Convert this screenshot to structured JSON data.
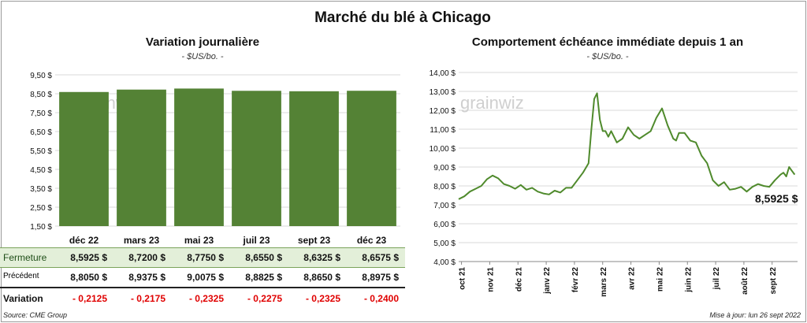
{
  "title": "Marché du blé à Chicago",
  "left_panel": {
    "title": "Variation  journalière",
    "unit": "- $US/bo. -",
    "watermark": "grainwiz"
  },
  "right_panel": {
    "title": "Comportement  échéance immédiate depuis 1 an",
    "unit": "- $US/bo. -",
    "watermark": "grainwiz",
    "last_value_label": "8,5925 $"
  },
  "table": {
    "rows": [
      {
        "label": "Fermeture",
        "values": [
          "8,5925  $",
          "8,7200  $",
          "8,7750  $",
          "8,6550  $",
          "8,6325  $",
          "8,6575  $"
        ]
      },
      {
        "label": "Précédent",
        "values": [
          "8,8050  $",
          "8,9375  $",
          "9,0075  $",
          "8,8825  $",
          "8,8650  $",
          "8,8975  $"
        ]
      },
      {
        "label": "Variation",
        "values": [
          "- 0,2125",
          "- 0,2175",
          "- 0,2325",
          "- 0,2275",
          "- 0,2325",
          "- 0,2400"
        ]
      }
    ]
  },
  "footer": {
    "source": "Source: CME Group",
    "updated": "Mise à jour: lun 26 sept 2022"
  },
  "colors": {
    "bar": "#548235",
    "line": "#4f8a2c",
    "grid": "#d9d9d9",
    "negative": "#e00000"
  },
  "chart_data": [
    {
      "type": "bar",
      "title": "Variation  journalière",
      "ylabel": "- $US/bo. -",
      "categories": [
        "déc 22",
        "mars 23",
        "mai 23",
        "juil 23",
        "sept 23",
        "déc 23"
      ],
      "values": [
        8.5925,
        8.72,
        8.775,
        8.655,
        8.6325,
        8.6575
      ],
      "ylim": [
        1.5,
        9.5
      ],
      "yticks": [
        1.5,
        2.5,
        3.5,
        4.5,
        5.5,
        6.5,
        7.5,
        8.5,
        9.5
      ],
      "ytick_labels": [
        "1,50 $",
        "2,50 $",
        "3,50 $",
        "4,50 $",
        "5,50 $",
        "6,50 $",
        "7,50 $",
        "8,50 $",
        "9,50 $"
      ],
      "grid": true
    },
    {
      "type": "line",
      "title": "Comportement  échéance immédiate depuis 1 an",
      "ylabel": "- $US/bo. -",
      "ylim": [
        4,
        14
      ],
      "yticks": [
        4,
        5,
        6,
        7,
        8,
        9,
        10,
        11,
        12,
        13,
        14
      ],
      "ytick_labels": [
        "4,00 $",
        "5,00 $",
        "6,00 $",
        "7,00 $",
        "8,00 $",
        "9,00 $",
        "10,00 $",
        "11,00 $",
        "12,00 $",
        "13,00 $",
        "14,00 $"
      ],
      "x_tick_labels": [
        "oct 21",
        "nov 21",
        "déc 21",
        "janv 22",
        "févr 22",
        "mars 22",
        "avr 22",
        "mai 22",
        "juin 22",
        "juil 22",
        "août 22",
        "sept 22"
      ],
      "x_range_months": [
        0,
        12
      ],
      "grid": true,
      "series": [
        {
          "x": [
            0,
            0.2,
            0.4,
            0.6,
            0.8,
            1.0,
            1.2,
            1.4,
            1.6,
            1.8,
            2.0,
            2.2,
            2.4,
            2.6,
            2.8,
            3.0,
            3.2,
            3.4,
            3.6,
            3.8,
            4.0,
            4.2,
            4.4,
            4.6,
            4.7,
            4.8,
            4.9,
            5.0,
            5.1,
            5.2,
            5.3,
            5.4,
            5.6,
            5.8,
            6.0,
            6.2,
            6.4,
            6.6,
            6.8,
            7.0,
            7.2,
            7.4,
            7.6,
            7.7,
            7.8,
            8.0,
            8.2,
            8.4,
            8.6,
            8.8,
            9.0,
            9.2,
            9.4,
            9.6,
            9.8,
            10.0,
            10.2,
            10.4,
            10.6,
            10.8,
            11.0,
            11.2,
            11.4,
            11.5,
            11.6,
            11.7,
            11.8,
            11.9
          ],
          "y": [
            7.3,
            7.45,
            7.7,
            7.85,
            8.0,
            8.35,
            8.55,
            8.4,
            8.1,
            8.0,
            7.85,
            8.05,
            7.8,
            7.9,
            7.7,
            7.6,
            7.55,
            7.75,
            7.65,
            7.9,
            7.9,
            8.3,
            8.7,
            9.2,
            11.0,
            12.6,
            12.9,
            11.5,
            10.9,
            10.9,
            10.6,
            10.9,
            10.3,
            10.5,
            11.1,
            10.7,
            10.5,
            10.7,
            10.9,
            11.6,
            12.1,
            11.2,
            10.5,
            10.4,
            10.8,
            10.8,
            10.4,
            10.3,
            9.6,
            9.2,
            8.3,
            8.0,
            8.2,
            7.8,
            7.85,
            7.95,
            7.7,
            7.95,
            8.1,
            8.0,
            7.95,
            8.3,
            8.6,
            8.7,
            8.5,
            9.0,
            8.8,
            8.6
          ]
        }
      ],
      "last_value": 8.5925
    }
  ]
}
